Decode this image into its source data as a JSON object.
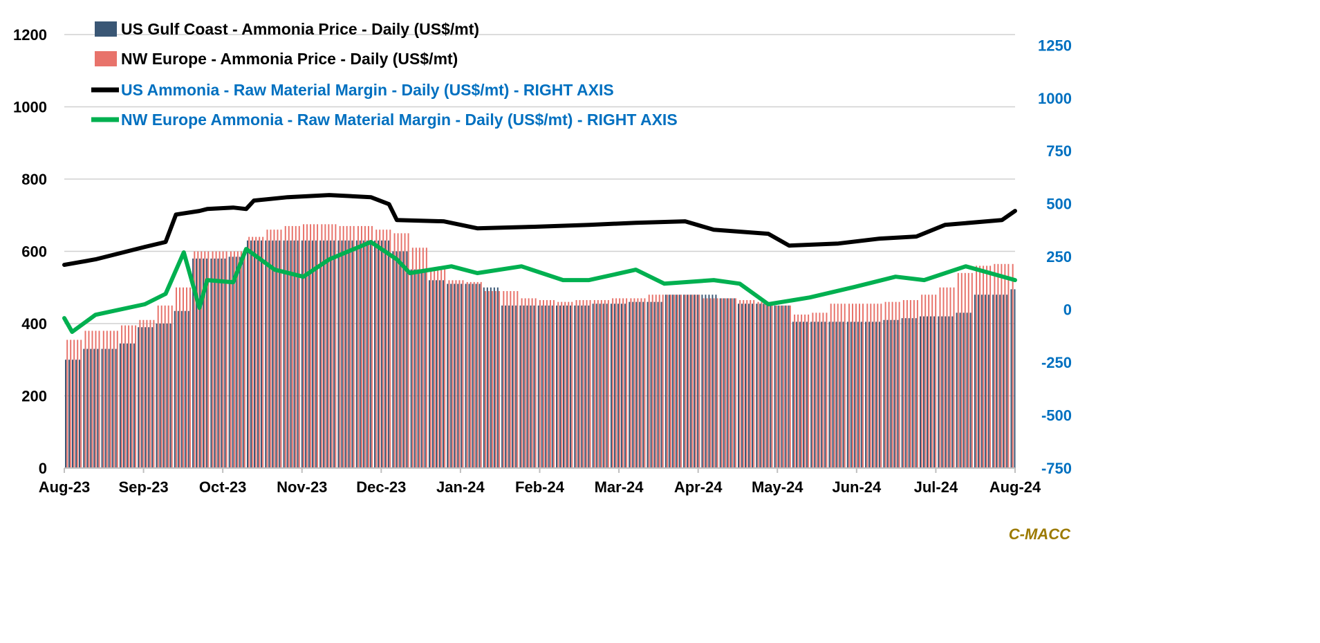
{
  "chart_data": {
    "type": "bar+line",
    "title": "",
    "left_axis": {
      "ylim": [
        0,
        1200
      ],
      "ticks": [
        0,
        200,
        400,
        600,
        800,
        1000,
        1200
      ],
      "color": "#000000"
    },
    "right_axis": {
      "ylim": [
        -750,
        1300
      ],
      "ticks": [
        -750,
        -500,
        -250,
        0,
        250,
        500,
        750,
        1000,
        1250
      ],
      "color": "#0070C0"
    },
    "x_axis": {
      "range": [
        "2023-08-01",
        "2024-08-01"
      ],
      "tick_labels": [
        "Aug-23",
        "Sep-23",
        "Oct-23",
        "Nov-23",
        "Dec-23",
        "Jan-24",
        "Feb-24",
        "Mar-24",
        "Apr-24",
        "May-24",
        "Jun-24",
        "Jul-24",
        "Aug-24"
      ]
    },
    "grid": true,
    "legend_position": "top",
    "bar_dates": [
      "2023-08-01",
      "2023-08-08",
      "2023-08-15",
      "2023-08-22",
      "2023-08-29",
      "2023-09-05",
      "2023-09-12",
      "2023-09-19",
      "2023-09-26",
      "2023-10-03",
      "2023-10-10",
      "2023-10-17",
      "2023-10-24",
      "2023-10-31",
      "2023-11-07",
      "2023-11-14",
      "2023-11-21",
      "2023-11-28",
      "2023-12-05",
      "2023-12-12",
      "2023-12-19",
      "2023-12-26",
      "2024-01-02",
      "2024-01-09",
      "2024-01-16",
      "2024-01-23",
      "2024-01-30",
      "2024-02-06",
      "2024-02-13",
      "2024-02-20",
      "2024-02-27",
      "2024-03-05",
      "2024-03-12",
      "2024-03-19",
      "2024-03-26",
      "2024-04-02",
      "2024-04-09",
      "2024-04-16",
      "2024-04-23",
      "2024-04-30",
      "2024-05-07",
      "2024-05-14",
      "2024-05-21",
      "2024-05-28",
      "2024-06-04",
      "2024-06-11",
      "2024-06-18",
      "2024-06-25",
      "2024-07-02",
      "2024-07-09",
      "2024-07-16",
      "2024-07-23",
      "2024-07-30"
    ],
    "bar_series": [
      {
        "name": "US Gulf Coast - Ammonia Price - Daily (US$/mt)",
        "axis": "left",
        "color": "#3A5775",
        "values": [
          300,
          330,
          330,
          345,
          390,
          400,
          435,
          580,
          580,
          585,
          630,
          630,
          630,
          630,
          630,
          630,
          630,
          630,
          600,
          550,
          520,
          510,
          510,
          500,
          450,
          450,
          450,
          450,
          450,
          455,
          455,
          460,
          460,
          480,
          480,
          480,
          470,
          455,
          455,
          450,
          405,
          405,
          405,
          405,
          405,
          410,
          415,
          420,
          420,
          430,
          480,
          480,
          495
        ]
      },
      {
        "name": "NW Europe - Ammonia Price - Daily (US$/mt)",
        "axis": "left",
        "color": "#E8736B",
        "values": [
          355,
          380,
          380,
          395,
          410,
          450,
          500,
          600,
          600,
          600,
          640,
          660,
          670,
          675,
          675,
          670,
          670,
          660,
          650,
          610,
          550,
          520,
          515,
          490,
          490,
          470,
          465,
          460,
          465,
          465,
          470,
          470,
          480,
          480,
          480,
          470,
          470,
          465,
          460,
          450,
          425,
          430,
          455,
          455,
          455,
          460,
          465,
          480,
          500,
          540,
          560,
          565,
          565
        ]
      }
    ],
    "line_series": [
      {
        "name": "US Ammonia - Raw Material Margin - Daily (US$/mt) - RIGHT AXIS",
        "axis": "right",
        "color": "#000000",
        "points": [
          [
            "2023-08-01",
            211
          ],
          [
            "2023-08-13",
            237
          ],
          [
            "2023-09-01",
            296
          ],
          [
            "2023-09-09",
            319
          ],
          [
            "2023-09-13",
            449
          ],
          [
            "2023-09-22",
            466
          ],
          [
            "2023-09-25",
            475
          ],
          [
            "2023-10-05",
            482
          ],
          [
            "2023-10-10",
            475
          ],
          [
            "2023-10-13",
            515
          ],
          [
            "2023-10-26",
            531
          ],
          [
            "2023-11-11",
            541
          ],
          [
            "2023-11-27",
            531
          ],
          [
            "2023-12-04",
            498
          ],
          [
            "2023-12-07",
            423
          ],
          [
            "2023-12-25",
            417
          ],
          [
            "2024-01-07",
            384
          ],
          [
            "2024-01-29",
            391
          ],
          [
            "2024-02-19",
            400
          ],
          [
            "2024-03-08",
            410
          ],
          [
            "2024-03-27",
            417
          ],
          [
            "2024-04-07",
            377
          ],
          [
            "2024-04-28",
            358
          ],
          [
            "2024-05-06",
            302
          ],
          [
            "2024-05-25",
            312
          ],
          [
            "2024-06-10",
            335
          ],
          [
            "2024-06-24",
            345
          ],
          [
            "2024-07-05",
            400
          ],
          [
            "2024-07-27",
            423
          ],
          [
            "2024-08-01",
            466
          ]
        ]
      },
      {
        "name": "NW Europe Ammonia - Raw Material Margin - Daily (US$/mt) - RIGHT AXIS",
        "axis": "right",
        "color": "#00B050",
        "points": [
          [
            "2023-08-01",
            -41
          ],
          [
            "2023-08-04",
            -106
          ],
          [
            "2023-08-13",
            -25
          ],
          [
            "2023-09-01",
            25
          ],
          [
            "2023-09-09",
            74
          ],
          [
            "2023-09-16",
            270
          ],
          [
            "2023-09-22",
            8
          ],
          [
            "2023-09-25",
            139
          ],
          [
            "2023-10-05",
            129
          ],
          [
            "2023-10-10",
            286
          ],
          [
            "2023-10-21",
            188
          ],
          [
            "2023-11-01",
            155
          ],
          [
            "2023-11-11",
            237
          ],
          [
            "2023-11-27",
            319
          ],
          [
            "2023-12-07",
            237
          ],
          [
            "2023-12-12",
            172
          ],
          [
            "2023-12-28",
            204
          ],
          [
            "2024-01-07",
            172
          ],
          [
            "2024-01-24",
            204
          ],
          [
            "2024-02-09",
            139
          ],
          [
            "2024-02-19",
            139
          ],
          [
            "2024-03-08",
            188
          ],
          [
            "2024-03-19",
            122
          ],
          [
            "2024-04-07",
            139
          ],
          [
            "2024-04-17",
            122
          ],
          [
            "2024-04-28",
            25
          ],
          [
            "2024-05-14",
            57
          ],
          [
            "2024-05-31",
            106
          ],
          [
            "2024-06-16",
            155
          ],
          [
            "2024-06-27",
            139
          ],
          [
            "2024-07-13",
            204
          ],
          [
            "2024-08-01",
            139
          ]
        ]
      }
    ]
  },
  "branding": {
    "watermark": "C-MACC",
    "color": "#9C7A00"
  }
}
